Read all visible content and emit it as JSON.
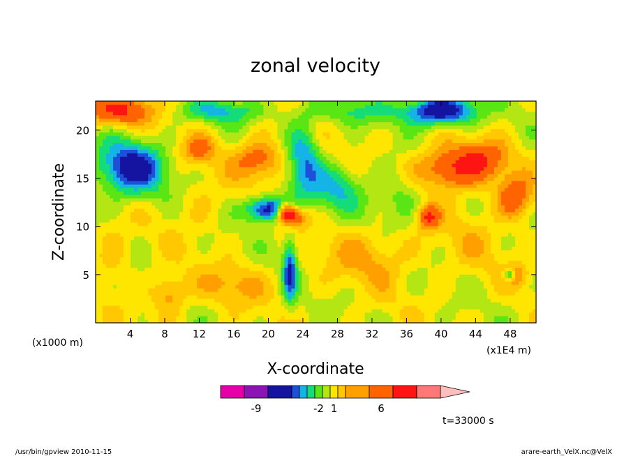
{
  "chart_data": {
    "type": "heatmap",
    "title": "zonal velocity",
    "xlabel": "X-coordinate",
    "ylabel": "Z-coordinate",
    "x_unit_left": "(x1000 m)",
    "x_unit_right": "(x1E4 m)",
    "xlim": [
      0,
      51
    ],
    "ylim": [
      0,
      23
    ],
    "x_ticks": [
      4,
      8,
      12,
      16,
      20,
      24,
      28,
      32,
      36,
      40,
      44,
      48
    ],
    "y_ticks": [
      5,
      10,
      15,
      20
    ],
    "colorbar": {
      "colors": [
        "#e600aa",
        "#8c14b4",
        "#1414a0",
        "#1c50d8",
        "#14b4e6",
        "#14dc78",
        "#5ae614",
        "#b4e614",
        "#ffe600",
        "#ffc800",
        "#ffa000",
        "#ff6400",
        "#ff1414",
        "#ff7878",
        "#ffbebe"
      ],
      "tick_labels": [
        {
          "label": "-9",
          "index": 1
        },
        {
          "label": "-2",
          "index": 6
        },
        {
          "label": "1",
          "index": 8
        },
        {
          "label": "6",
          "index": 11
        }
      ]
    },
    "features": [
      {
        "x": 4,
        "z": 16,
        "value": -6,
        "sx": 4,
        "sz": 2.8
      },
      {
        "x": 2.5,
        "z": 22,
        "value": 5,
        "sx": 4,
        "sz": 1.5
      },
      {
        "x": 14.5,
        "z": 22,
        "value": -3,
        "sx": 5,
        "sz": 1.2
      },
      {
        "x": 19,
        "z": 17,
        "value": 4,
        "sx": 3,
        "sz": 2
      },
      {
        "x": 12,
        "z": 18,
        "value": 3,
        "sx": 2,
        "sz": 1.5
      },
      {
        "x": 20,
        "z": 11.8,
        "value": -7,
        "sx": 2.5,
        "sz": 1.3
      },
      {
        "x": 22,
        "z": 11.5,
        "value": 7,
        "sx": 1,
        "sz": 1
      },
      {
        "x": 23,
        "z": 11,
        "value": 5,
        "sx": 1.5,
        "sz": 1
      },
      {
        "x": 22.5,
        "z": 5.5,
        "value": -5,
        "sx": 0.8,
        "sz": 3.5
      },
      {
        "x": 24,
        "z": 17,
        "value": -4,
        "sx": 2,
        "sz": 4
      },
      {
        "x": 30,
        "z": 22,
        "value": -2,
        "sx": 6,
        "sz": 1.3
      },
      {
        "x": 40,
        "z": 22,
        "value": -7,
        "sx": 4,
        "sz": 1.5
      },
      {
        "x": 41,
        "z": 16,
        "value": 5,
        "sx": 4,
        "sz": 2.2
      },
      {
        "x": 45,
        "z": 17,
        "value": 3,
        "sx": 3,
        "sz": 2
      },
      {
        "x": 48.5,
        "z": 13,
        "value": 4,
        "sx": 2,
        "sz": 2.2
      },
      {
        "x": 38.5,
        "z": 11,
        "value": 5,
        "sx": 1.2,
        "sz": 1.2
      },
      {
        "x": 32,
        "z": 7,
        "value": 2,
        "sx": 5,
        "sz": 3
      },
      {
        "x": 16,
        "z": 4,
        "value": 2,
        "sx": 4,
        "sz": 2
      },
      {
        "x": 8.5,
        "z": 3,
        "value": 3,
        "sx": 2,
        "sz": 2
      },
      {
        "x": 48,
        "z": 5,
        "value": -6,
        "sx": 0.8,
        "sz": 0.7
      },
      {
        "x": 48.5,
        "z": 5,
        "value": 4,
        "sx": 1.2,
        "sz": 1
      },
      {
        "x": 28,
        "z": 14,
        "value": -3,
        "sx": 3,
        "sz": 2.5
      },
      {
        "x": 35,
        "z": 13,
        "value": -2,
        "sx": 3,
        "sz": 3
      },
      {
        "x": 12,
        "z": 12,
        "value": 1,
        "sx": 3,
        "sz": 3
      },
      {
        "x": 44,
        "z": 9,
        "value": 1,
        "sx": 4,
        "sz": 4
      },
      {
        "x": 2,
        "z": 7,
        "value": 1.5,
        "sx": 2,
        "sz": 3
      }
    ]
  },
  "annotations": {
    "time": "t=33000 s"
  },
  "footer": {
    "left": "/usr/bin/gpview   2010-11-15",
    "right": "arare-earth_VelX.nc@VelX"
  }
}
